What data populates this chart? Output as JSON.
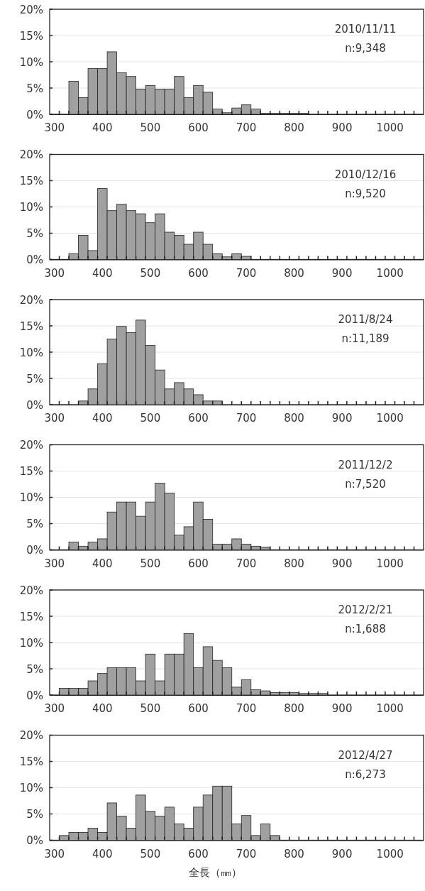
{
  "chart_data": [
    {
      "type": "histogram",
      "color": "#a0a0a0",
      "grid": "y",
      "annotations": [
        "2010/11/11",
        "n:9,348"
      ],
      "bins": [
        290,
        310,
        330,
        350,
        370,
        390,
        410,
        430,
        450,
        470,
        490,
        510,
        530,
        550,
        570,
        590,
        610,
        630,
        650,
        670,
        690,
        710,
        730,
        750,
        770,
        790,
        810,
        830,
        850,
        870,
        890,
        910,
        930,
        950,
        970,
        990,
        1010,
        1030,
        1050,
        1070
      ],
      "values": [
        0,
        0,
        6.3,
        3.2,
        8.7,
        8.7,
        11.9,
        7.9,
        7.2,
        4.8,
        5.5,
        4.8,
        4.8,
        7.2,
        3.2,
        5.5,
        4.2,
        1.0,
        0.3,
        1.2,
        1.8,
        1.0,
        0.2,
        0.2,
        0.2,
        0.2,
        0.2,
        0,
        0,
        0,
        0,
        0,
        0,
        0,
        0,
        0,
        0,
        0,
        0
      ],
      "xlim": [
        290,
        1070
      ],
      "ylim": [
        0,
        20
      ],
      "xticks": [
        300,
        400,
        500,
        600,
        700,
        800,
        900,
        1000,
        {
          "value": 310,
          "label": null
        },
        {
          "value": 330,
          "label": null
        },
        {
          "value": 350,
          "label": null
        },
        {
          "value": 370,
          "label": null
        },
        {
          "value": 390,
          "label": null
        },
        {
          "value": 410,
          "label": null
        },
        {
          "value": 430,
          "label": null
        },
        {
          "value": 450,
          "label": null
        },
        {
          "value": 470,
          "label": null
        },
        {
          "value": 490,
          "label": null
        },
        {
          "value": 510,
          "label": null
        },
        {
          "value": 530,
          "label": null
        },
        {
          "value": 550,
          "label": null
        },
        {
          "value": 570,
          "label": null
        },
        {
          "value": 590,
          "label": null
        },
        {
          "value": 610,
          "label": null
        },
        {
          "value": 630,
          "label": null
        },
        {
          "value": 650,
          "label": null
        },
        {
          "value": 670,
          "label": null
        },
        {
          "value": 690,
          "label": null
        },
        {
          "value": 710,
          "label": null
        },
        {
          "value": 730,
          "label": null
        },
        {
          "value": 750,
          "label": null
        },
        {
          "value": 770,
          "label": null
        },
        {
          "value": 790,
          "label": null
        },
        {
          "value": 810,
          "label": null
        },
        {
          "value": 830,
          "label": null
        },
        {
          "value": 850,
          "label": null
        },
        {
          "value": 870,
          "label": null
        },
        {
          "value": 890,
          "label": null
        },
        {
          "value": 910,
          "label": null
        },
        {
          "value": 930,
          "label": null
        },
        {
          "value": 950,
          "label": null
        },
        {
          "value": 970,
          "label": null
        },
        {
          "value": 990,
          "label": null
        },
        {
          "value": 1010,
          "label": null
        },
        {
          "value": 1030,
          "label": null
        },
        {
          "value": 1050,
          "label": null
        }
      ],
      "yticks": [
        {
          "value": 0,
          "label": "0%"
        },
        {
          "value": 5,
          "label": "5%"
        },
        {
          "value": 10,
          "label": "10%"
        },
        {
          "value": 15,
          "label": "15%"
        },
        {
          "value": 20,
          "label": "20%"
        }
      ]
    },
    {
      "type": "histogram",
      "color": "#a0a0a0",
      "grid": "y",
      "annotations": [
        "2010/12/16",
        "n:9,520"
      ],
      "bins": [
        290,
        310,
        330,
        350,
        370,
        390,
        410,
        430,
        450,
        470,
        490,
        510,
        530,
        550,
        570,
        590,
        610,
        630,
        650,
        670,
        690,
        710,
        730,
        750,
        770,
        790,
        810,
        830,
        850,
        870,
        890,
        910,
        930,
        950,
        970,
        990,
        1010,
        1030,
        1050,
        1070
      ],
      "values": [
        0,
        0,
        1.1,
        4.6,
        1.7,
        13.5,
        9.3,
        10.5,
        9.3,
        8.7,
        7.0,
        8.7,
        5.2,
        4.6,
        2.9,
        5.2,
        2.9,
        1.1,
        0.5,
        1.1,
        0.6,
        0,
        0,
        0,
        0,
        0,
        0,
        0,
        0,
        0,
        0,
        0,
        0,
        0,
        0,
        0,
        0,
        0,
        0
      ],
      "xlim": [
        290,
        1070
      ],
      "ylim": [
        0,
        20
      ],
      "xticks": [
        300,
        400,
        500,
        600,
        700,
        800,
        900,
        1000,
        {
          "value": 310,
          "label": null
        },
        {
          "value": 330,
          "label": null
        },
        {
          "value": 350,
          "label": null
        },
        {
          "value": 370,
          "label": null
        },
        {
          "value": 390,
          "label": null
        },
        {
          "value": 410,
          "label": null
        },
        {
          "value": 430,
          "label": null
        },
        {
          "value": 450,
          "label": null
        },
        {
          "value": 470,
          "label": null
        },
        {
          "value": 490,
          "label": null
        },
        {
          "value": 510,
          "label": null
        },
        {
          "value": 530,
          "label": null
        },
        {
          "value": 550,
          "label": null
        },
        {
          "value": 570,
          "label": null
        },
        {
          "value": 590,
          "label": null
        },
        {
          "value": 610,
          "label": null
        },
        {
          "value": 630,
          "label": null
        },
        {
          "value": 650,
          "label": null
        },
        {
          "value": 670,
          "label": null
        },
        {
          "value": 690,
          "label": null
        },
        {
          "value": 710,
          "label": null
        },
        {
          "value": 730,
          "label": null
        },
        {
          "value": 750,
          "label": null
        },
        {
          "value": 770,
          "label": null
        },
        {
          "value": 790,
          "label": null
        },
        {
          "value": 810,
          "label": null
        },
        {
          "value": 830,
          "label": null
        },
        {
          "value": 850,
          "label": null
        },
        {
          "value": 870,
          "label": null
        },
        {
          "value": 890,
          "label": null
        },
        {
          "value": 910,
          "label": null
        },
        {
          "value": 930,
          "label": null
        },
        {
          "value": 950,
          "label": null
        },
        {
          "value": 970,
          "label": null
        },
        {
          "value": 990,
          "label": null
        },
        {
          "value": 1010,
          "label": null
        },
        {
          "value": 1030,
          "label": null
        },
        {
          "value": 1050,
          "label": null
        }
      ],
      "yticks": [
        {
          "value": 0,
          "label": "0%"
        },
        {
          "value": 5,
          "label": "5%"
        },
        {
          "value": 10,
          "label": "10%"
        },
        {
          "value": 15,
          "label": "15%"
        },
        {
          "value": 20,
          "label": "20%"
        }
      ]
    },
    {
      "type": "histogram",
      "color": "#a0a0a0",
      "grid": "y",
      "annotations": [
        "2011/8/24",
        "n:11,189"
      ],
      "bins": [
        290,
        310,
        330,
        350,
        370,
        390,
        410,
        430,
        450,
        470,
        490,
        510,
        530,
        550,
        570,
        590,
        610,
        630,
        650,
        670,
        690,
        710,
        730,
        750,
        770,
        790,
        810,
        830,
        850,
        870,
        890,
        910,
        930,
        950,
        970,
        990,
        1010,
        1030,
        1050,
        1070
      ],
      "values": [
        0,
        0,
        0,
        0.7,
        3.0,
        7.8,
        12.5,
        14.9,
        13.7,
        16.1,
        11.3,
        6.6,
        3.0,
        4.2,
        3.0,
        1.9,
        0.7,
        0.7,
        0,
        0,
        0,
        0,
        0,
        0,
        0,
        0,
        0,
        0,
        0,
        0,
        0,
        0,
        0,
        0,
        0,
        0,
        0,
        0,
        0
      ],
      "xlim": [
        290,
        1070
      ],
      "ylim": [
        0,
        20
      ],
      "xticks": [
        300,
        400,
        500,
        600,
        700,
        800,
        900,
        1000,
        {
          "value": 310,
          "label": null
        },
        {
          "value": 330,
          "label": null
        },
        {
          "value": 350,
          "label": null
        },
        {
          "value": 370,
          "label": null
        },
        {
          "value": 390,
          "label": null
        },
        {
          "value": 410,
          "label": null
        },
        {
          "value": 430,
          "label": null
        },
        {
          "value": 450,
          "label": null
        },
        {
          "value": 470,
          "label": null
        },
        {
          "value": 490,
          "label": null
        },
        {
          "value": 510,
          "label": null
        },
        {
          "value": 530,
          "label": null
        },
        {
          "value": 550,
          "label": null
        },
        {
          "value": 570,
          "label": null
        },
        {
          "value": 590,
          "label": null
        },
        {
          "value": 610,
          "label": null
        },
        {
          "value": 630,
          "label": null
        },
        {
          "value": 650,
          "label": null
        },
        {
          "value": 670,
          "label": null
        },
        {
          "value": 690,
          "label": null
        },
        {
          "value": 710,
          "label": null
        },
        {
          "value": 730,
          "label": null
        },
        {
          "value": 750,
          "label": null
        },
        {
          "value": 770,
          "label": null
        },
        {
          "value": 790,
          "label": null
        },
        {
          "value": 810,
          "label": null
        },
        {
          "value": 830,
          "label": null
        },
        {
          "value": 850,
          "label": null
        },
        {
          "value": 870,
          "label": null
        },
        {
          "value": 890,
          "label": null
        },
        {
          "value": 910,
          "label": null
        },
        {
          "value": 930,
          "label": null
        },
        {
          "value": 950,
          "label": null
        },
        {
          "value": 970,
          "label": null
        },
        {
          "value": 990,
          "label": null
        },
        {
          "value": 1010,
          "label": null
        },
        {
          "value": 1030,
          "label": null
        },
        {
          "value": 1050,
          "label": null
        }
      ],
      "yticks": [
        {
          "value": 0,
          "label": "0%"
        },
        {
          "value": 5,
          "label": "5%"
        },
        {
          "value": 10,
          "label": "10%"
        },
        {
          "value": 15,
          "label": "15%"
        },
        {
          "value": 20,
          "label": "20%"
        }
      ]
    },
    {
      "type": "histogram",
      "color": "#a0a0a0",
      "grid": "y",
      "annotations": [
        "2011/12/2",
        "n:7,520"
      ],
      "bins": [
        290,
        310,
        330,
        350,
        370,
        390,
        410,
        430,
        450,
        470,
        490,
        510,
        530,
        550,
        570,
        590,
        610,
        630,
        650,
        670,
        690,
        710,
        730,
        750,
        770,
        790,
        810,
        830,
        850,
        870,
        890,
        910,
        930,
        950,
        970,
        990,
        1010,
        1030,
        1050,
        1070
      ],
      "values": [
        0,
        0,
        1.5,
        0.7,
        1.5,
        2.1,
        7.2,
        9.1,
        9.1,
        6.4,
        9.1,
        12.7,
        10.8,
        2.8,
        4.4,
        9.1,
        5.8,
        1.1,
        1.1,
        2.1,
        1.1,
        0.7,
        0.5,
        0,
        0,
        0,
        0,
        0,
        0,
        0,
        0,
        0,
        0,
        0,
        0,
        0,
        0,
        0,
        0
      ],
      "xlim": [
        290,
        1070
      ],
      "ylim": [
        0,
        20
      ],
      "xticks": [
        300,
        400,
        500,
        600,
        700,
        800,
        900,
        1000,
        {
          "value": 310,
          "label": null
        },
        {
          "value": 330,
          "label": null
        },
        {
          "value": 350,
          "label": null
        },
        {
          "value": 370,
          "label": null
        },
        {
          "value": 390,
          "label": null
        },
        {
          "value": 410,
          "label": null
        },
        {
          "value": 430,
          "label": null
        },
        {
          "value": 450,
          "label": null
        },
        {
          "value": 470,
          "label": null
        },
        {
          "value": 490,
          "label": null
        },
        {
          "value": 510,
          "label": null
        },
        {
          "value": 530,
          "label": null
        },
        {
          "value": 550,
          "label": null
        },
        {
          "value": 570,
          "label": null
        },
        {
          "value": 590,
          "label": null
        },
        {
          "value": 610,
          "label": null
        },
        {
          "value": 630,
          "label": null
        },
        {
          "value": 650,
          "label": null
        },
        {
          "value": 670,
          "label": null
        },
        {
          "value": 690,
          "label": null
        },
        {
          "value": 710,
          "label": null
        },
        {
          "value": 730,
          "label": null
        },
        {
          "value": 750,
          "label": null
        },
        {
          "value": 770,
          "label": null
        },
        {
          "value": 790,
          "label": null
        },
        {
          "value": 810,
          "label": null
        },
        {
          "value": 830,
          "label": null
        },
        {
          "value": 850,
          "label": null
        },
        {
          "value": 870,
          "label": null
        },
        {
          "value": 890,
          "label": null
        },
        {
          "value": 910,
          "label": null
        },
        {
          "value": 930,
          "label": null
        },
        {
          "value": 950,
          "label": null
        },
        {
          "value": 970,
          "label": null
        },
        {
          "value": 990,
          "label": null
        },
        {
          "value": 1010,
          "label": null
        },
        {
          "value": 1030,
          "label": null
        },
        {
          "value": 1050,
          "label": null
        }
      ],
      "yticks": [
        {
          "value": 0,
          "label": "0%"
        },
        {
          "value": 5,
          "label": "5%"
        },
        {
          "value": 10,
          "label": "10%"
        },
        {
          "value": 15,
          "label": "15%"
        },
        {
          "value": 20,
          "label": "20%"
        }
      ]
    },
    {
      "type": "histogram",
      "color": "#a0a0a0",
      "grid": "y",
      "annotations": [
        "2012/2/21",
        "n:1,688"
      ],
      "bins": [
        290,
        310,
        330,
        350,
        370,
        390,
        410,
        430,
        450,
        470,
        490,
        510,
        530,
        550,
        570,
        590,
        610,
        630,
        650,
        670,
        690,
        710,
        730,
        750,
        770,
        790,
        810,
        830,
        850,
        870,
        890,
        910,
        930,
        950,
        970,
        990,
        1010,
        1030,
        1050,
        1070
      ],
      "values": [
        0,
        1.3,
        1.3,
        1.3,
        2.7,
        4.1,
        5.2,
        5.2,
        5.2,
        2.7,
        7.8,
        2.7,
        7.8,
        7.8,
        11.7,
        5.2,
        9.2,
        6.6,
        5.2,
        1.5,
        2.9,
        1.0,
        0.8,
        0.5,
        0.5,
        0.5,
        0.3,
        0.3,
        0.3,
        0,
        0,
        0,
        0,
        0,
        0,
        0,
        0,
        0,
        0
      ],
      "xlim": [
        290,
        1070
      ],
      "ylim": [
        0,
        20
      ],
      "xticks": [
        300,
        400,
        500,
        600,
        700,
        800,
        900,
        1000,
        {
          "value": 310,
          "label": null
        },
        {
          "value": 330,
          "label": null
        },
        {
          "value": 350,
          "label": null
        },
        {
          "value": 370,
          "label": null
        },
        {
          "value": 390,
          "label": null
        },
        {
          "value": 410,
          "label": null
        },
        {
          "value": 430,
          "label": null
        },
        {
          "value": 450,
          "label": null
        },
        {
          "value": 470,
          "label": null
        },
        {
          "value": 490,
          "label": null
        },
        {
          "value": 510,
          "label": null
        },
        {
          "value": 530,
          "label": null
        },
        {
          "value": 550,
          "label": null
        },
        {
          "value": 570,
          "label": null
        },
        {
          "value": 590,
          "label": null
        },
        {
          "value": 610,
          "label": null
        },
        {
          "value": 630,
          "label": null
        },
        {
          "value": 650,
          "label": null
        },
        {
          "value": 670,
          "label": null
        },
        {
          "value": 690,
          "label": null
        },
        {
          "value": 710,
          "label": null
        },
        {
          "value": 730,
          "label": null
        },
        {
          "value": 750,
          "label": null
        },
        {
          "value": 770,
          "label": null
        },
        {
          "value": 790,
          "label": null
        },
        {
          "value": 810,
          "label": null
        },
        {
          "value": 830,
          "label": null
        },
        {
          "value": 850,
          "label": null
        },
        {
          "value": 870,
          "label": null
        },
        {
          "value": 890,
          "label": null
        },
        {
          "value": 910,
          "label": null
        },
        {
          "value": 930,
          "label": null
        },
        {
          "value": 950,
          "label": null
        },
        {
          "value": 970,
          "label": null
        },
        {
          "value": 990,
          "label": null
        },
        {
          "value": 1010,
          "label": null
        },
        {
          "value": 1030,
          "label": null
        },
        {
          "value": 1050,
          "label": null
        }
      ],
      "yticks": [
        {
          "value": 0,
          "label": "0%"
        },
        {
          "value": 5,
          "label": "5%"
        },
        {
          "value": 10,
          "label": "10%"
        },
        {
          "value": 15,
          "label": "15%"
        },
        {
          "value": 20,
          "label": "20%"
        }
      ]
    },
    {
      "type": "histogram",
      "color": "#a0a0a0",
      "grid": "y",
      "annotations": [
        "2012/4/27",
        "n:6,273"
      ],
      "xlabel": "全長（㎜）",
      "bins": [
        290,
        310,
        330,
        350,
        370,
        390,
        410,
        430,
        450,
        470,
        490,
        510,
        530,
        550,
        570,
        590,
        610,
        630,
        650,
        670,
        690,
        710,
        730,
        750,
        770,
        790,
        810,
        830,
        850,
        870,
        890,
        910,
        930,
        950,
        970,
        990,
        1010,
        1030,
        1050,
        1070
      ],
      "values": [
        0,
        0.9,
        1.5,
        1.5,
        2.3,
        1.5,
        7.1,
        4.6,
        2.3,
        8.6,
        5.5,
        4.6,
        6.3,
        3.1,
        2.3,
        6.3,
        8.6,
        10.3,
        10.3,
        3.1,
        4.7,
        0.9,
        3.1,
        0.9,
        0,
        0,
        0,
        0,
        0,
        0,
        0,
        0,
        0,
        0,
        0,
        0,
        0,
        0,
        0
      ],
      "xlim": [
        290,
        1070
      ],
      "ylim": [
        0,
        20
      ],
      "xticks": [
        300,
        400,
        500,
        600,
        700,
        800,
        900,
        1000,
        {
          "value": 310,
          "label": null
        },
        {
          "value": 330,
          "label": null
        },
        {
          "value": 350,
          "label": null
        },
        {
          "value": 370,
          "label": null
        },
        {
          "value": 390,
          "label": null
        },
        {
          "value": 410,
          "label": null
        },
        {
          "value": 430,
          "label": null
        },
        {
          "value": 450,
          "label": null
        },
        {
          "value": 470,
          "label": null
        },
        {
          "value": 490,
          "label": null
        },
        {
          "value": 510,
          "label": null
        },
        {
          "value": 530,
          "label": null
        },
        {
          "value": 550,
          "label": null
        },
        {
          "value": 570,
          "label": null
        },
        {
          "value": 590,
          "label": null
        },
        {
          "value": 610,
          "label": null
        },
        {
          "value": 630,
          "label": null
        },
        {
          "value": 650,
          "label": null
        },
        {
          "value": 670,
          "label": null
        },
        {
          "value": 690,
          "label": null
        },
        {
          "value": 710,
          "label": null
        },
        {
          "value": 730,
          "label": null
        },
        {
          "value": 750,
          "label": null
        },
        {
          "value": 770,
          "label": null
        },
        {
          "value": 790,
          "label": null
        },
        {
          "value": 810,
          "label": null
        },
        {
          "value": 830,
          "label": null
        },
        {
          "value": 850,
          "label": null
        },
        {
          "value": 870,
          "label": null
        },
        {
          "value": 890,
          "label": null
        },
        {
          "value": 910,
          "label": null
        },
        {
          "value": 930,
          "label": null
        },
        {
          "value": 950,
          "label": null
        },
        {
          "value": 970,
          "label": null
        },
        {
          "value": 990,
          "label": null
        },
        {
          "value": 1010,
          "label": null
        },
        {
          "value": 1030,
          "label": null
        },
        {
          "value": 1050,
          "label": null
        }
      ],
      "yticks": [
        {
          "value": 0,
          "label": "0%"
        },
        {
          "value": 5,
          "label": "5%"
        },
        {
          "value": 10,
          "label": "10%"
        },
        {
          "value": 15,
          "label": "15%"
        },
        {
          "value": 20,
          "label": "20%"
        }
      ]
    }
  ]
}
